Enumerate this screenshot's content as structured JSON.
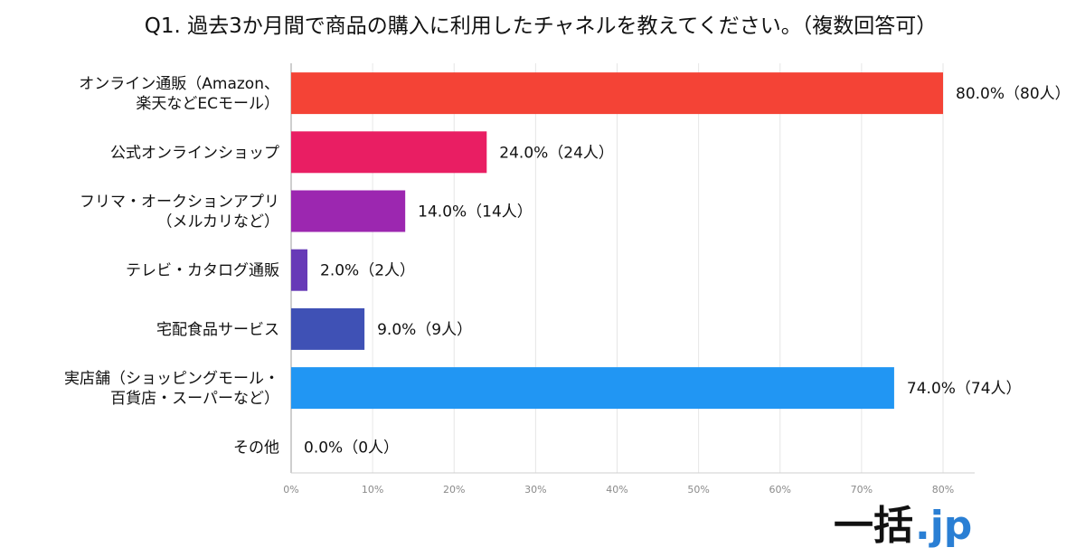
{
  "chart_data": {
    "type": "bar",
    "orientation": "horizontal",
    "title": "Q1. 過去3か月間で商品の購入に利用したチャネルを教えてください。（複数回答可）",
    "categories": [
      [
        "オンライン通販（Amazon、",
        "楽天などECモール）"
      ],
      [
        "公式オンラインショップ"
      ],
      [
        "フリマ・オークションアプリ",
        "（メルカリなど）"
      ],
      [
        "テレビ・カタログ通販"
      ],
      [
        "宅配食品サービス"
      ],
      [
        "実店舗（ショッピングモール・",
        "百貨店・スーパーなど）"
      ],
      [
        "その他"
      ]
    ],
    "values": [
      80.0,
      24.0,
      14.0,
      2.0,
      9.0,
      74.0,
      0.0
    ],
    "data_labels": [
      "80.0%（80人）",
      "24.0%（24人）",
      "14.0%（14人）",
      "2.0%（2人）",
      "9.0%（9人）",
      "74.0%（74人）",
      "0.0%（0人）"
    ],
    "colors": [
      "#f44336",
      "#e91e63",
      "#9c27b0",
      "#673ab7",
      "#3f51b5",
      "#2196f3",
      "#03a9f4"
    ],
    "xlim": [
      0,
      80
    ],
    "xticks": [
      "0%",
      "10%",
      "20%",
      "30%",
      "40%",
      "50%",
      "60%",
      "70%",
      "80%"
    ],
    "grid": true,
    "legend": "none"
  },
  "brand": {
    "main": "一括",
    "accent": ".jp",
    "accent_color": "#2a7fd4"
  }
}
